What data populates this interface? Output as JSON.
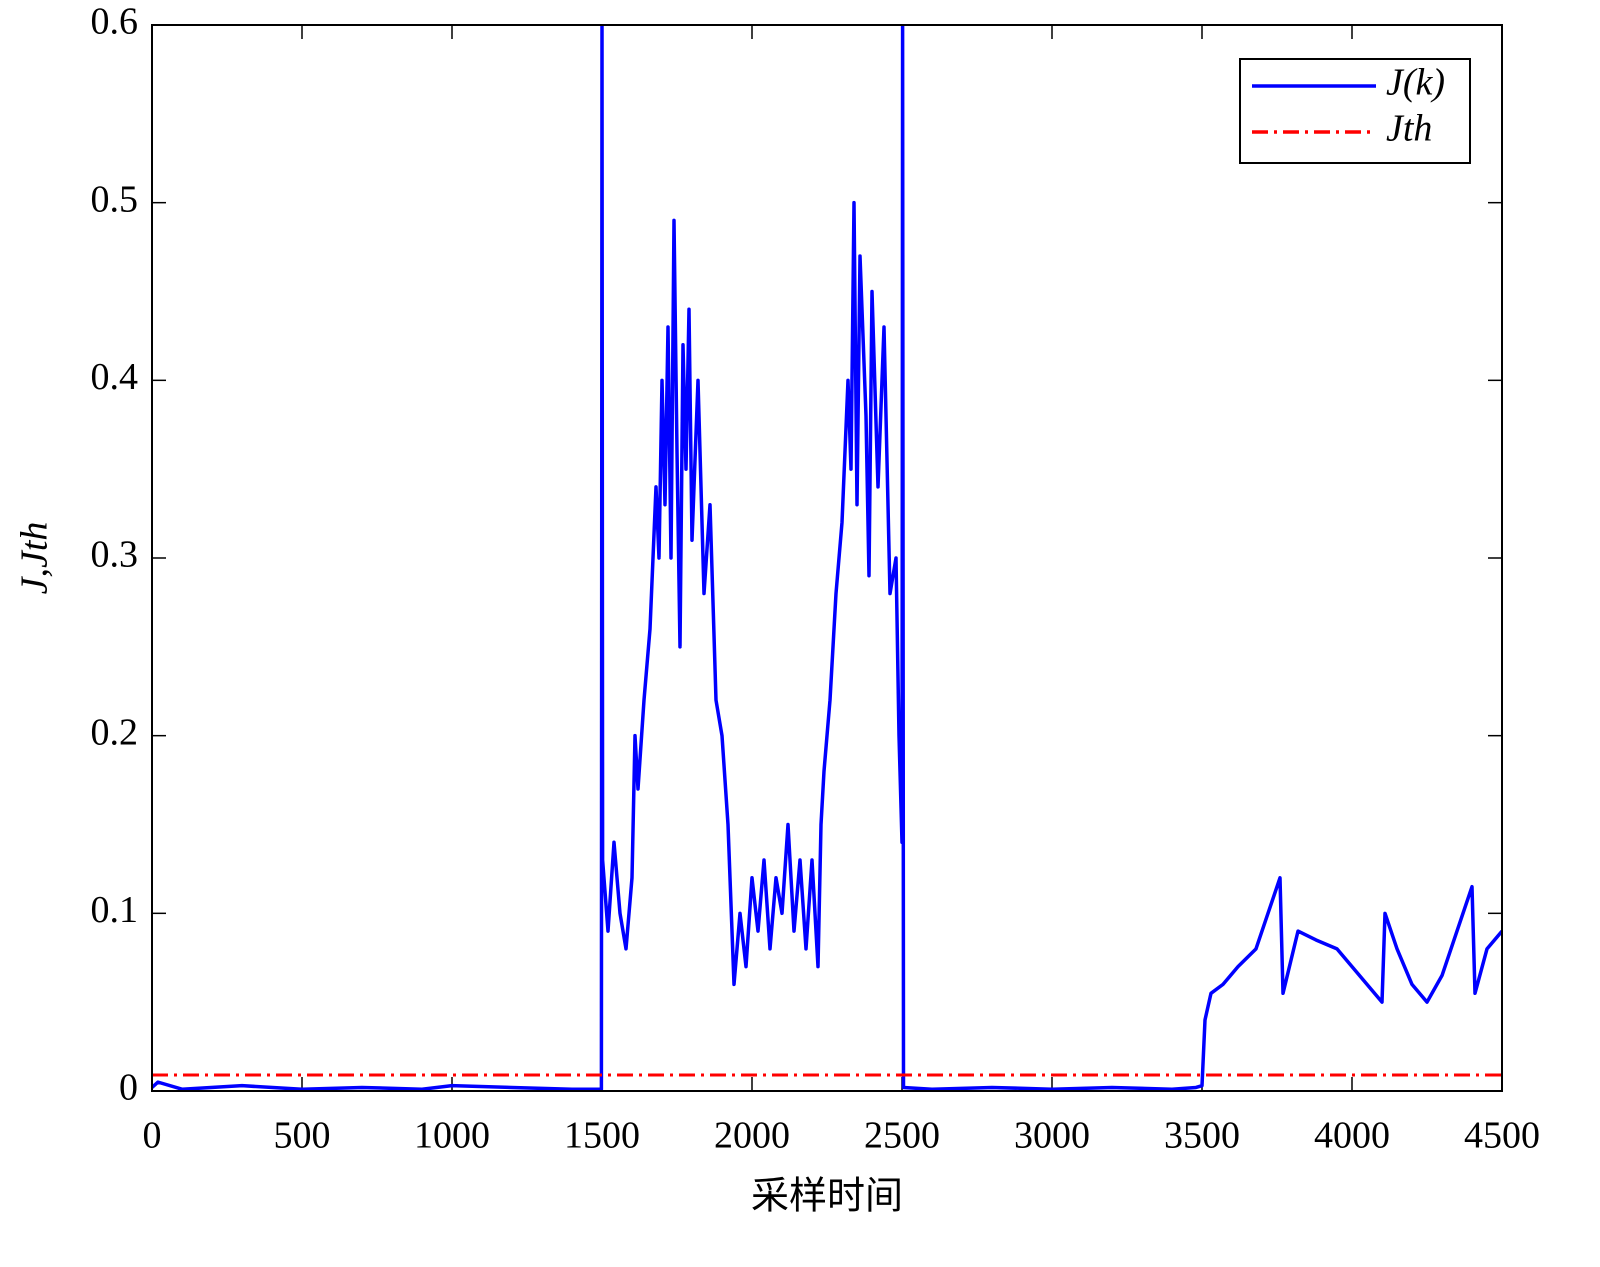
{
  "chart_data": {
    "type": "line",
    "xlabel": "采样时间",
    "ylabel": "J,Jth",
    "x": [
      0,
      20,
      100,
      300,
      500,
      700,
      900,
      1000,
      1200,
      1400,
      1498,
      1500,
      1502,
      1520,
      1540,
      1560,
      1580,
      1600,
      1610,
      1620,
      1640,
      1660,
      1680,
      1690,
      1700,
      1710,
      1720,
      1730,
      1740,
      1750,
      1760,
      1770,
      1780,
      1790,
      1800,
      1820,
      1840,
      1860,
      1880,
      1900,
      1920,
      1940,
      1960,
      1980,
      2000,
      2020,
      2040,
      2060,
      2080,
      2100,
      2120,
      2140,
      2160,
      2180,
      2200,
      2220,
      2230,
      2240,
      2260,
      2280,
      2300,
      2320,
      2330,
      2340,
      2350,
      2360,
      2380,
      2390,
      2400,
      2420,
      2440,
      2460,
      2480,
      2490,
      2500,
      2502,
      2505,
      2600,
      2800,
      3000,
      3200,
      3400,
      3480,
      3500,
      3510,
      3530,
      3570,
      3620,
      3680,
      3760,
      3770,
      3820,
      3880,
      3950,
      4000,
      4050,
      4100,
      4110,
      4150,
      4200,
      4250,
      4300,
      4350,
      4400,
      4410,
      4450,
      4500
    ],
    "series": [
      {
        "name": "J(k)",
        "color": "#0000ff",
        "style": "solid",
        "values": [
          0.002,
          0.005,
          0.001,
          0.003,
          0.001,
          0.002,
          0.001,
          0.003,
          0.002,
          0.001,
          0.001,
          0.6,
          0.13,
          0.09,
          0.14,
          0.1,
          0.08,
          0.12,
          0.2,
          0.17,
          0.22,
          0.26,
          0.34,
          0.3,
          0.4,
          0.33,
          0.43,
          0.3,
          0.49,
          0.36,
          0.25,
          0.42,
          0.35,
          0.44,
          0.31,
          0.4,
          0.28,
          0.33,
          0.22,
          0.2,
          0.15,
          0.06,
          0.1,
          0.07,
          0.12,
          0.09,
          0.13,
          0.08,
          0.12,
          0.1,
          0.15,
          0.09,
          0.13,
          0.08,
          0.13,
          0.07,
          0.15,
          0.18,
          0.22,
          0.28,
          0.32,
          0.4,
          0.35,
          0.5,
          0.33,
          0.47,
          0.38,
          0.29,
          0.45,
          0.34,
          0.43,
          0.28,
          0.3,
          0.2,
          0.14,
          0.6,
          0.002,
          0.001,
          0.002,
          0.001,
          0.002,
          0.001,
          0.002,
          0.003,
          0.04,
          0.055,
          0.06,
          0.07,
          0.08,
          0.12,
          0.055,
          0.09,
          0.085,
          0.08,
          0.07,
          0.06,
          0.05,
          0.1,
          0.08,
          0.06,
          0.05,
          0.065,
          0.09,
          0.115,
          0.055,
          0.08,
          0.09
        ]
      },
      {
        "name": "Jth",
        "color": "#ff0000",
        "style": "dashdot",
        "x": [
          0,
          4500
        ],
        "values": [
          0.009,
          0.009
        ]
      }
    ],
    "xlim": [
      0,
      4500
    ],
    "xticks": [
      0,
      500,
      1000,
      1500,
      2000,
      2500,
      3000,
      3500,
      4000,
      4500
    ],
    "ylim": [
      0,
      0.6
    ],
    "yticks": [
      0,
      0.1,
      0.2,
      0.3,
      0.4,
      0.5,
      0.6
    ],
    "grid": false,
    "legend": "upper-right"
  }
}
